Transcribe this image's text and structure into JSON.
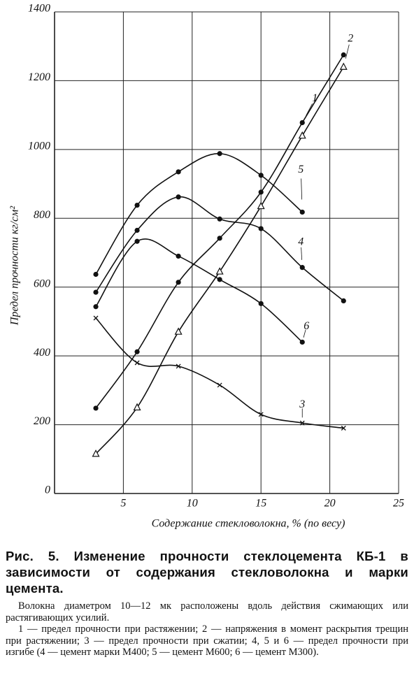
{
  "chart_data": {
    "type": "line",
    "ylabel": "Предел прочности кг/см²",
    "xlabel": "Содержание стекловолокна, % (по весу)",
    "xlim": [
      0,
      25
    ],
    "xticks": [
      5,
      10,
      15,
      20,
      25
    ],
    "ylim": [
      0,
      1400
    ],
    "yticks": [
      0,
      200,
      400,
      600,
      800,
      1000,
      1200,
      1400
    ],
    "grid": true,
    "color": "#111111",
    "x": [
      3,
      6,
      9,
      12,
      15,
      18,
      21
    ],
    "series": [
      {
        "name": "1",
        "marker": "dot",
        "values": [
          248,
          412,
          614,
          742,
          876,
          1078,
          1275
        ]
      },
      {
        "name": "2",
        "marker": "triangle",
        "values": [
          115,
          250,
          470,
          645,
          835,
          1040,
          1240
        ]
      },
      {
        "name": "3",
        "marker": "cross",
        "values": [
          510,
          380,
          370,
          315,
          230,
          205,
          190
        ]
      },
      {
        "name": "4",
        "marker": "dot",
        "values": [
          585,
          765,
          862,
          798,
          770,
          657,
          560
        ]
      },
      {
        "name": "5",
        "marker": "dot",
        "values": [
          637,
          838,
          935,
          988,
          925,
          818,
          null
        ]
      },
      {
        "name": "6",
        "marker": "dot",
        "values": [
          543,
          733,
          690,
          622,
          552,
          440,
          null
        ]
      }
    ]
  },
  "caption": {
    "title": "Рис. 5. Изменение прочности стеклоцемента КБ-1 в зависимости от содержания стекловолокна и марки цемента.",
    "notes": [
      "Волокна диаметром 10—12 мк расположены вдоль действия сжимающих или растягивающих усилий.",
      "1 — предел прочности при растяжении; 2 — напряжения в момент раскрытия трещин при растяжении; 3 — предел прочности при сжатии; 4, 5 и 6 — предел прочности при изгибе (4 — цемент марки М400; 5 — цемент М600; 6 — цемент М300)."
    ]
  }
}
